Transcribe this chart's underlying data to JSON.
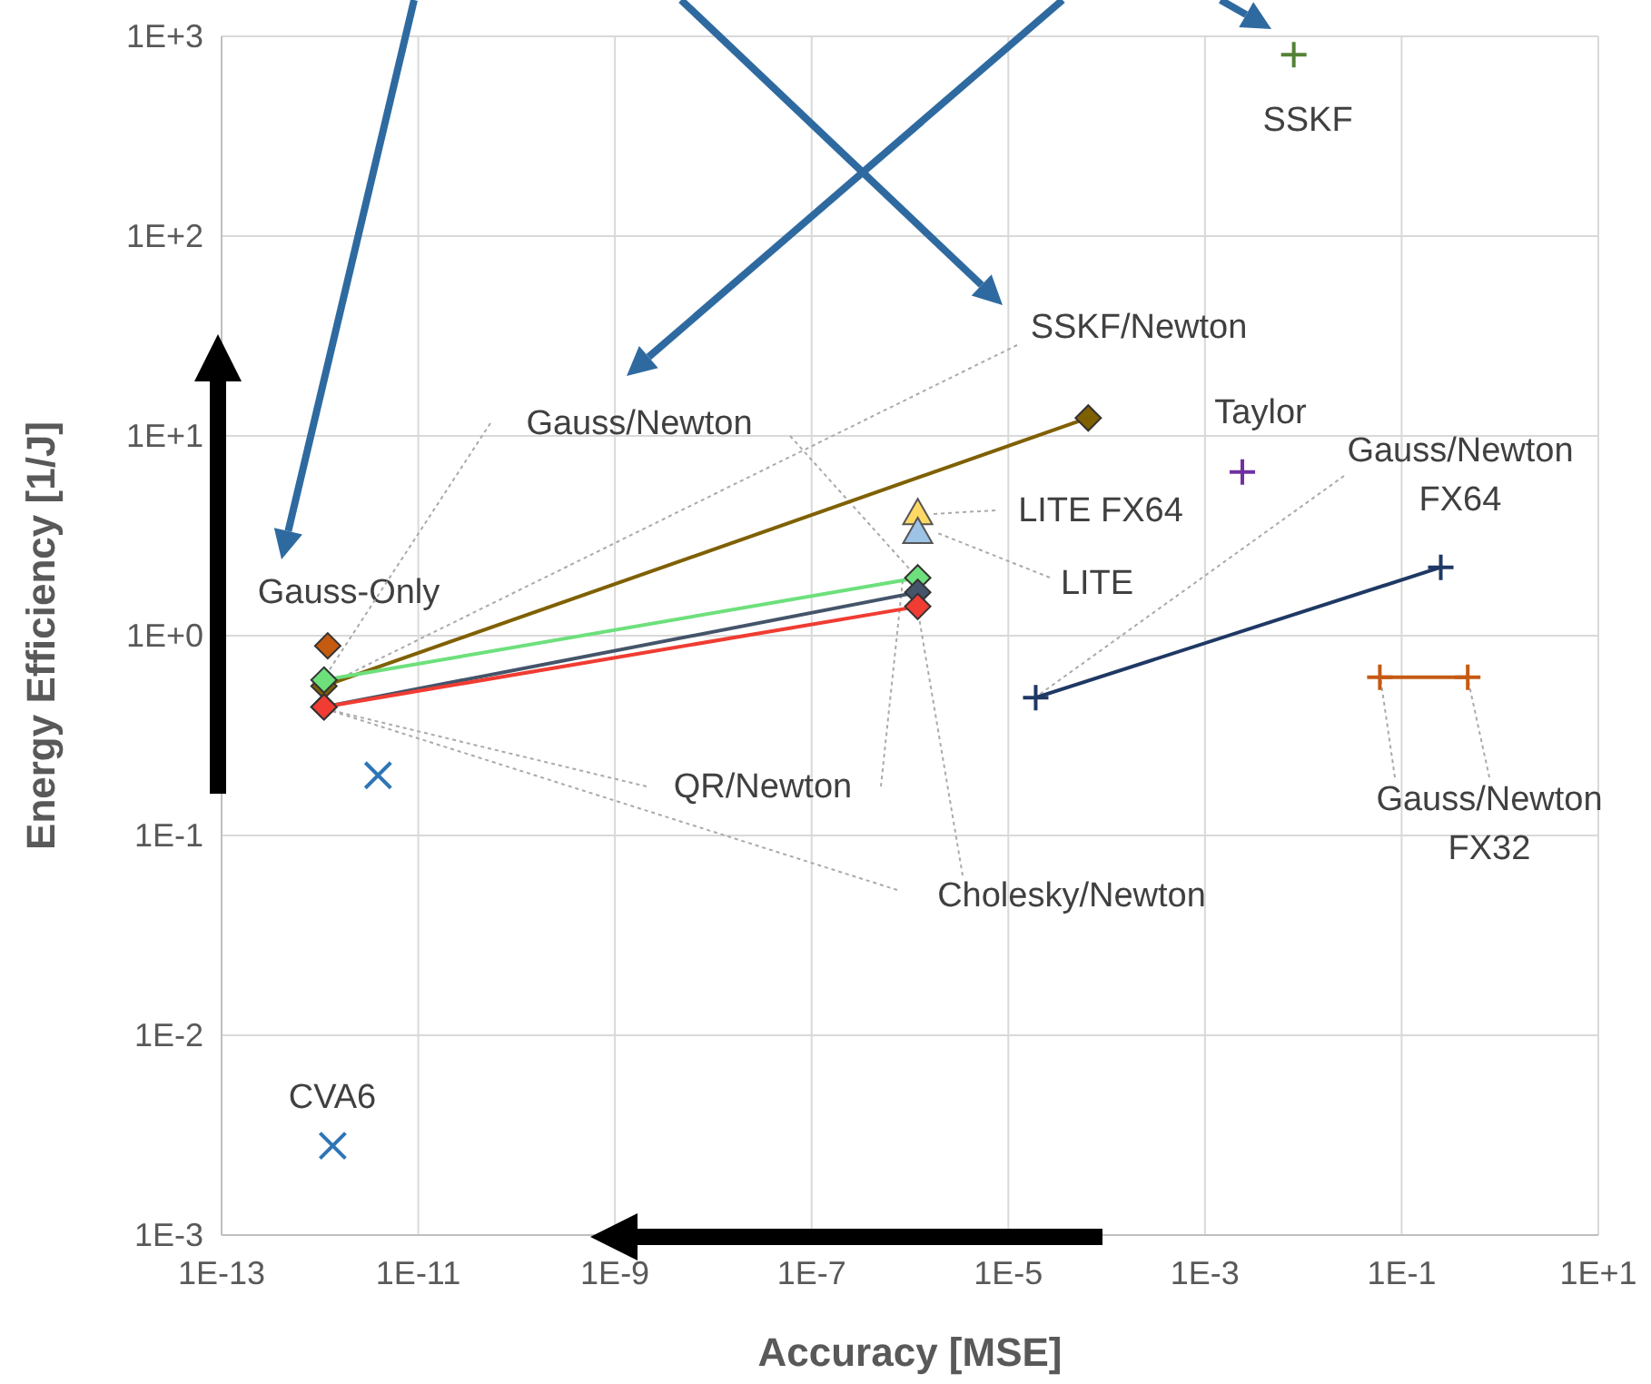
{
  "chart_data": {
    "type": "scatter",
    "xlabel": "Accuracy [MSE]",
    "ylabel": "Energy Efficiency [1/J]",
    "log": "xy",
    "grid": true,
    "xlim": [
      1e-13,
      10
    ],
    "ylim": [
      0.001,
      1000
    ],
    "xticks": [
      {
        "value": 1e-13,
        "label": "1E-13"
      },
      {
        "value": 1e-11,
        "label": "1E-11"
      },
      {
        "value": 1e-09,
        "label": "1E-9"
      },
      {
        "value": 1e-07,
        "label": "1E-7"
      },
      {
        "value": 1e-05,
        "label": "1E-5"
      },
      {
        "value": 0.001,
        "label": "1E-3"
      },
      {
        "value": 0.1,
        "label": "1E-1"
      },
      {
        "value": 10,
        "label": "1E+1"
      }
    ],
    "yticks": [
      {
        "value": 0.001,
        "label": "1E-3"
      },
      {
        "value": 0.01,
        "label": "1E-2"
      },
      {
        "value": 0.1,
        "label": "1E-1"
      },
      {
        "value": 1,
        "label": "1E+0"
      },
      {
        "value": 10,
        "label": "1E+1"
      },
      {
        "value": 100,
        "label": "1E+2"
      },
      {
        "value": 1000,
        "label": "1E+3"
      }
    ],
    "series": [
      {
        "name": "SSKF",
        "marker": "plus",
        "color": "#548235",
        "x": [
          0.008
        ],
        "values": [
          810
        ]
      },
      {
        "name": "Taylor",
        "marker": "plus",
        "color": "#7030a0",
        "x": [
          0.0024
        ],
        "values": [
          6.6
        ]
      },
      {
        "name": "Gauss/Newton FX64",
        "type": "line",
        "marker": "plus",
        "color": "#1f3864",
        "x": [
          1.9e-05,
          0.25
        ],
        "values": [
          0.49,
          2.2
        ]
      },
      {
        "name": "Gauss/Newton FX32",
        "type": "line",
        "marker": "plus",
        "color": "#c55a11",
        "x": [
          0.06,
          0.47
        ],
        "values": [
          0.62,
          0.62
        ]
      },
      {
        "marker": "cross",
        "color": "#2e75b6",
        "x": [
          3.9e-12
        ],
        "values": [
          0.2
        ]
      },
      {
        "name": "CVA6",
        "marker": "cross",
        "color": "#2e75b6",
        "x": [
          1.35e-12
        ],
        "values": [
          0.0028
        ]
      },
      {
        "name": "Gauss-Only",
        "marker": "diamond",
        "color": "#c55a11",
        "x": [
          1.2e-12
        ],
        "values": [
          0.89
        ]
      },
      {
        "name": "SSKF/Newton",
        "type": "line",
        "marker": "diamond",
        "color": "#7f6000",
        "x": [
          1.1e-12,
          6.5e-05
        ],
        "values": [
          0.56,
          12.3
        ]
      },
      {
        "name": "Gauss/Newton",
        "type": "line",
        "marker": "diamond",
        "color": "#6de07c",
        "x": [
          1.1e-12,
          1.2e-06
        ],
        "values": [
          0.6,
          1.95
        ]
      },
      {
        "name": "Cholesky/Newton",
        "type": "line",
        "marker": "diamond",
        "color": "#44546a",
        "x": [
          1.1e-12,
          1.2e-06
        ],
        "values": [
          0.44,
          1.65
        ]
      },
      {
        "name": "QR/Newton",
        "type": "line",
        "marker": "diamond",
        "color": "#f03c32",
        "x": [
          1.1e-12,
          1.2e-06
        ],
        "values": [
          0.44,
          1.4
        ]
      },
      {
        "name": "LITE FX64",
        "marker": "triangle",
        "color": "#ffd966",
        "x": [
          1.2e-06
        ],
        "values": [
          4.1
        ]
      },
      {
        "name": "LITE",
        "marker": "triangle",
        "color": "#9dc3e6",
        "x": [
          1.2e-06
        ],
        "values": [
          3.3
        ]
      }
    ]
  }
}
